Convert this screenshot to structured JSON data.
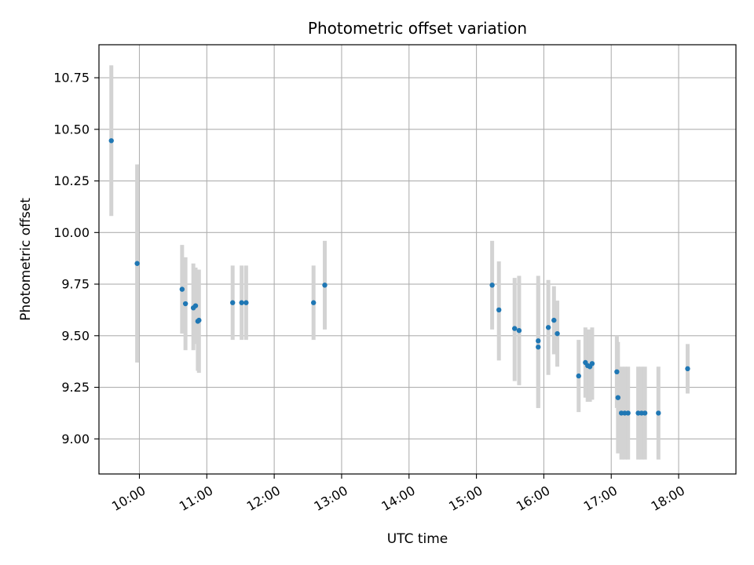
{
  "chart_data": {
    "type": "scatter",
    "title": "Photometric offset variation",
    "xlabel": "UTC time",
    "ylabel": "Photometric offset",
    "x_axis_type": "time",
    "xlim": [
      "09:24",
      "18:51"
    ],
    "ylim": [
      8.83,
      10.91
    ],
    "x_ticks": [
      "10:00",
      "11:00",
      "12:00",
      "13:00",
      "14:00",
      "15:00",
      "16:00",
      "17:00",
      "18:00"
    ],
    "y_ticks": [
      9.0,
      9.25,
      9.5,
      9.75,
      10.0,
      10.25,
      10.5,
      10.75
    ],
    "grid": true,
    "point_color": "#1f77b4",
    "errorbar_color": "#d3d3d3",
    "points": [
      {
        "x": "09:35",
        "y": 10.445,
        "ylow": 10.08,
        "yhigh": 10.81
      },
      {
        "x": "09:58",
        "y": 9.85,
        "ylow": 9.37,
        "yhigh": 10.33
      },
      {
        "x": "10:38",
        "y": 9.725,
        "ylow": 9.51,
        "yhigh": 9.94
      },
      {
        "x": "10:41",
        "y": 9.655,
        "ylow": 9.43,
        "yhigh": 9.88
      },
      {
        "x": "10:48",
        "y": 9.635,
        "ylow": 9.43,
        "yhigh": 9.85
      },
      {
        "x": "10:50",
        "y": 9.645,
        "ylow": 9.46,
        "yhigh": 9.83
      },
      {
        "x": "10:52",
        "y": 9.57,
        "ylow": 9.33,
        "yhigh": 9.82
      },
      {
        "x": "10:53",
        "y": 9.575,
        "ylow": 9.32,
        "yhigh": 9.82
      },
      {
        "x": "11:23",
        "y": 9.66,
        "ylow": 9.48,
        "yhigh": 9.84
      },
      {
        "x": "11:31",
        "y": 9.66,
        "ylow": 9.48,
        "yhigh": 9.84
      },
      {
        "x": "11:35",
        "y": 9.66,
        "ylow": 9.48,
        "yhigh": 9.84
      },
      {
        "x": "12:35",
        "y": 9.66,
        "ylow": 9.48,
        "yhigh": 9.84
      },
      {
        "x": "12:45",
        "y": 9.745,
        "ylow": 9.53,
        "yhigh": 9.96
      },
      {
        "x": "15:14",
        "y": 9.745,
        "ylow": 9.53,
        "yhigh": 9.96
      },
      {
        "x": "15:20",
        "y": 9.625,
        "ylow": 9.38,
        "yhigh": 9.86
      },
      {
        "x": "15:34",
        "y": 9.535,
        "ylow": 9.28,
        "yhigh": 9.78
      },
      {
        "x": "15:38",
        "y": 9.525,
        "ylow": 9.26,
        "yhigh": 9.79
      },
      {
        "x": "15:55",
        "y": 9.475,
        "ylow": 9.15,
        "yhigh": 9.79
      },
      {
        "x": "15:55",
        "y": 9.445,
        "ylow": 9.15,
        "yhigh": 9.75
      },
      {
        "x": "16:04",
        "y": 9.54,
        "ylow": 9.31,
        "yhigh": 9.77
      },
      {
        "x": "16:09",
        "y": 9.575,
        "ylow": 9.41,
        "yhigh": 9.74
      },
      {
        "x": "16:12",
        "y": 9.51,
        "ylow": 9.35,
        "yhigh": 9.67
      },
      {
        "x": "16:31",
        "y": 9.305,
        "ylow": 9.13,
        "yhigh": 9.48
      },
      {
        "x": "16:37",
        "y": 9.37,
        "ylow": 9.2,
        "yhigh": 9.54
      },
      {
        "x": "16:39",
        "y": 9.355,
        "ylow": 9.18,
        "yhigh": 9.53
      },
      {
        "x": "16:41",
        "y": 9.35,
        "ylow": 9.18,
        "yhigh": 9.53
      },
      {
        "x": "16:43",
        "y": 9.365,
        "ylow": 9.19,
        "yhigh": 9.54
      },
      {
        "x": "17:05",
        "y": 9.325,
        "ylow": 9.15,
        "yhigh": 9.5
      },
      {
        "x": "17:06",
        "y": 9.2,
        "ylow": 8.93,
        "yhigh": 9.47
      },
      {
        "x": "17:09",
        "y": 9.125,
        "ylow": 8.9,
        "yhigh": 9.35
      },
      {
        "x": "17:12",
        "y": 9.125,
        "ylow": 8.9,
        "yhigh": 9.35
      },
      {
        "x": "17:15",
        "y": 9.125,
        "ylow": 8.9,
        "yhigh": 9.35
      },
      {
        "x": "17:24",
        "y": 9.125,
        "ylow": 8.9,
        "yhigh": 9.35
      },
      {
        "x": "17:27",
        "y": 9.125,
        "ylow": 8.9,
        "yhigh": 9.35
      },
      {
        "x": "17:30",
        "y": 9.125,
        "ylow": 8.9,
        "yhigh": 9.35
      },
      {
        "x": "17:42",
        "y": 9.125,
        "ylow": 8.9,
        "yhigh": 9.35
      },
      {
        "x": "18:08",
        "y": 9.34,
        "ylow": 9.22,
        "yhigh": 9.46
      }
    ]
  }
}
